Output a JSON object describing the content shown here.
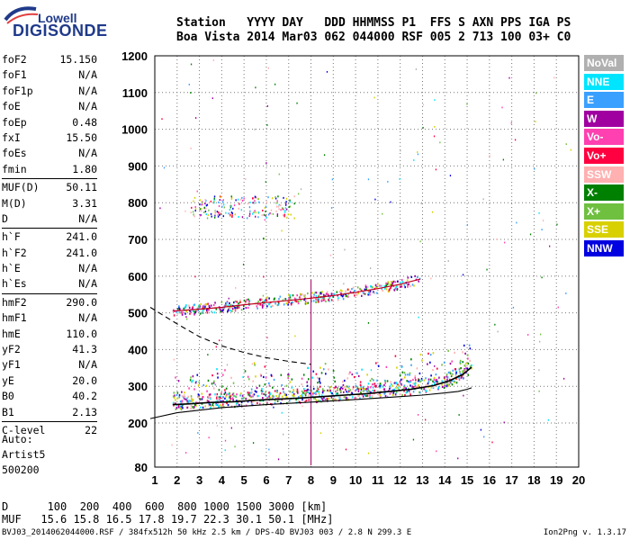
{
  "logo": {
    "line1": "Lowell",
    "line2": "DIGISONDE"
  },
  "header": {
    "line1": "Station   YYYY DAY   DDD HHMMSS P1  FFS S AXN PPS IGA PS",
    "line2": "Boa Vista 2014 Mar03 062 044000 RSF 005 2 713 100 03+ C0"
  },
  "params": [
    {
      "name": "foF2",
      "value": "15.150"
    },
    {
      "name": "foF1",
      "value": "N/A"
    },
    {
      "name": "foF1p",
      "value": "N/A"
    },
    {
      "name": "foE",
      "value": "N/A"
    },
    {
      "name": "foEp",
      "value": "0.48"
    },
    {
      "name": "fxI",
      "value": "15.50"
    },
    {
      "name": "foEs",
      "value": "N/A"
    },
    {
      "name": "fmin",
      "value": "1.80"
    },
    {
      "name": "MUF(D)",
      "value": "50.11",
      "sep": true
    },
    {
      "name": "M(D)",
      "value": "3.31"
    },
    {
      "name": "D",
      "value": "N/A"
    },
    {
      "name": "h`F",
      "value": "241.0",
      "sep": true
    },
    {
      "name": "h`F2",
      "value": "241.0"
    },
    {
      "name": "h`E",
      "value": "N/A"
    },
    {
      "name": "h`Es",
      "value": "N/A"
    },
    {
      "name": "hmF2",
      "value": "290.0",
      "sep": true
    },
    {
      "name": "hmF1",
      "value": "N/A"
    },
    {
      "name": "hmE",
      "value": "110.0"
    },
    {
      "name": "yF2",
      "value": "41.3"
    },
    {
      "name": "yF1",
      "value": "N/A"
    },
    {
      "name": "yE",
      "value": "20.0"
    },
    {
      "name": "B0",
      "value": "40.2"
    },
    {
      "name": "B1",
      "value": "2.13"
    },
    {
      "name": "C-level",
      "value": "22",
      "sep": true
    }
  ],
  "auto": {
    "line1": "Auto:",
    "line2": "Artist5",
    "line3": "500200"
  },
  "legend": [
    {
      "label": "NoVal",
      "bg": "#b0b0b0",
      "fg": "#ffffff"
    },
    {
      "label": "NNE",
      "bg": "#00e5ff",
      "fg": "#ffffff"
    },
    {
      "label": "E",
      "bg": "#3aa0ff",
      "fg": "#ffffff"
    },
    {
      "label": "W",
      "bg": "#a000a0",
      "fg": "#ffffff"
    },
    {
      "label": "Vo-",
      "bg": "#ff40b0",
      "fg": "#ffffff"
    },
    {
      "label": "Vo+",
      "bg": "#ff0040",
      "fg": "#ffffff"
    },
    {
      "label": "SSW",
      "bg": "#ffb0b0",
      "fg": "#ffffff"
    },
    {
      "label": "X-",
      "bg": "#008000",
      "fg": "#ffffff"
    },
    {
      "label": "X+",
      "bg": "#70c040",
      "fg": "#ffffff"
    },
    {
      "label": "SSE",
      "bg": "#d8d000",
      "fg": "#ffffff"
    },
    {
      "label": "NNW",
      "bg": "#0000e0",
      "fg": "#ffffff"
    }
  ],
  "dmuf": {
    "d_line": "D      100  200  400  600  800 1000 1500 3000 [km]",
    "muf_line": "MUF   15.6 15.8 16.5 17.8 19.7 22.3 30.1 50.1 [MHz]"
  },
  "footer": "BVJ03_2014062044000.RSF / 384fx512h 50 kHz 2.5 km / DPS-4D BVJ03 003 / 2.8 N 299.3 E",
  "version": "Ion2Png v. 1.3.17",
  "chart_data": {
    "type": "scatter",
    "xlim": [
      1,
      20
    ],
    "ylim": [
      80,
      1200
    ],
    "xticks": [
      1,
      2,
      3,
      4,
      5,
      6,
      7,
      8,
      9,
      10,
      11,
      12,
      13,
      14,
      15,
      16,
      17,
      18,
      19,
      20
    ],
    "yticks": [
      80,
      200,
      300,
      400,
      500,
      600,
      700,
      800,
      900,
      1000,
      1100,
      1200
    ],
    "grid": "dotted",
    "traces": [
      {
        "name": "O-trace",
        "x": [
          1.8,
          2.5,
          3.5,
          4.5,
          5.5,
          6.5,
          7.5,
          8.5,
          9.5,
          10.5,
          11.5,
          12.5,
          13.5,
          14.2,
          14.8,
          15.2
        ],
        "y": [
          250,
          252,
          256,
          258,
          262,
          265,
          268,
          272,
          276,
          280,
          286,
          292,
          302,
          315,
          332,
          352
        ]
      },
      {
        "name": "second-hop",
        "x": [
          1.8,
          3,
          4,
          5,
          6,
          7,
          8,
          9,
          10,
          11,
          12,
          12.9
        ],
        "y": [
          505,
          510,
          515,
          522,
          528,
          534,
          540,
          547,
          556,
          566,
          578,
          592
        ]
      },
      {
        "name": "profile-solid",
        "x": [
          0.8,
          2,
          4,
          6,
          8,
          10,
          12,
          13,
          14,
          14.6,
          15.0,
          15.2
        ],
        "y": [
          212,
          228,
          242,
          250,
          257,
          264,
          272,
          276,
          282,
          286,
          292,
          296
        ]
      },
      {
        "name": "profile-dashed",
        "x": [
          0.8,
          2,
          3,
          4,
          5,
          6,
          7,
          8
        ],
        "y": [
          515,
          470,
          435,
          410,
          392,
          378,
          368,
          360
        ]
      }
    ]
  }
}
